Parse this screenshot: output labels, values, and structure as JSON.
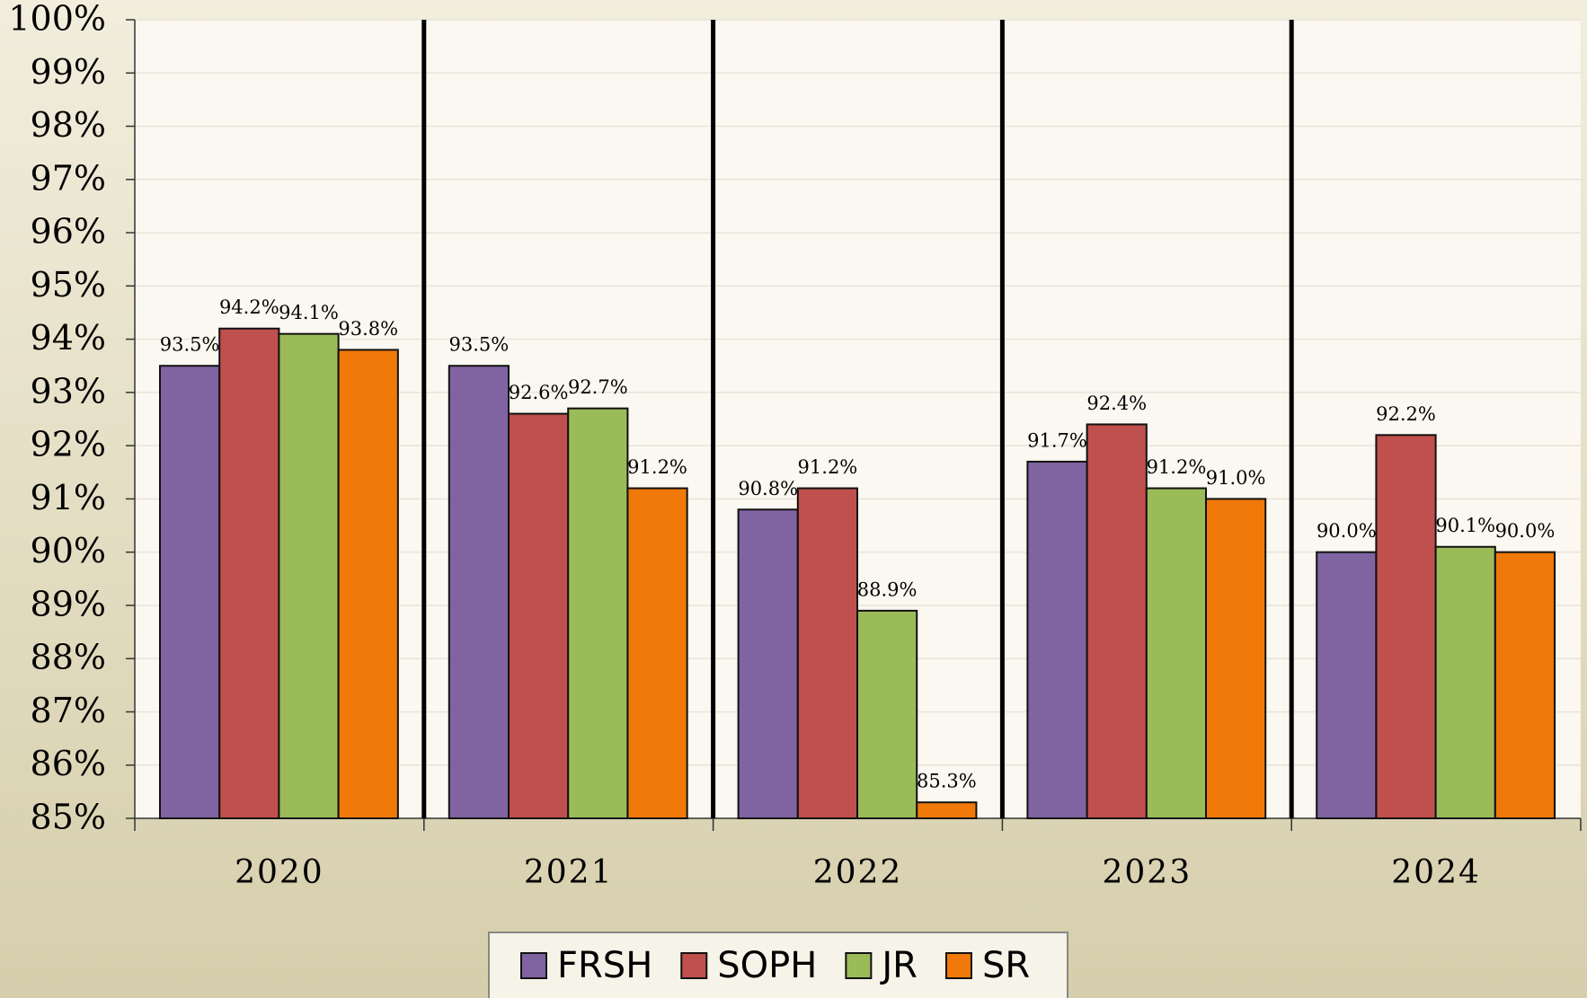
{
  "chart_data": {
    "type": "bar",
    "categories": [
      "2020",
      "2021",
      "2022",
      "2023",
      "2024"
    ],
    "series": [
      {
        "name": "FRSH",
        "color": "#8064a2",
        "values": [
          93.5,
          93.5,
          90.8,
          91.7,
          90.0
        ],
        "value_labels": [
          "93.5%",
          "93.5%",
          "90.8%",
          "91.7%",
          "90.0%"
        ]
      },
      {
        "name": "SOPH",
        "color": "#c0504d",
        "values": [
          94.2,
          92.6,
          91.2,
          92.4,
          92.2
        ],
        "value_labels": [
          "94.2%",
          "92.6%",
          "91.2%",
          "92.4%",
          "92.2%"
        ]
      },
      {
        "name": "JR",
        "color": "#9bbb59",
        "values": [
          94.1,
          92.7,
          88.9,
          91.2,
          90.1
        ],
        "value_labels": [
          "94.1%",
          "92.7%",
          "88.9%",
          "91.2%",
          "90.1%"
        ]
      },
      {
        "name": "SR",
        "color": "#f0790a",
        "values": [
          93.8,
          91.2,
          85.3,
          91.0,
          90.0
        ],
        "value_labels": [
          "93.8%",
          "91.2%",
          "85.3%",
          "91.0%",
          "90.0%"
        ]
      }
    ],
    "ylim": [
      85,
      100
    ],
    "yticks": [
      {
        "value": 85,
        "label": "85%"
      },
      {
        "value": 86,
        "label": "86%"
      },
      {
        "value": 87,
        "label": "87%"
      },
      {
        "value": 88,
        "label": "88%"
      },
      {
        "value": 89,
        "label": "89%"
      },
      {
        "value": 90,
        "label": "90%"
      },
      {
        "value": 91,
        "label": "91%"
      },
      {
        "value": 92,
        "label": "92%"
      },
      {
        "value": 93,
        "label": "93%"
      },
      {
        "value": 94,
        "label": "94%"
      },
      {
        "value": 95,
        "label": "95%"
      },
      {
        "value": 96,
        "label": "96%"
      },
      {
        "value": 97,
        "label": "97%"
      },
      {
        "value": 98,
        "label": "98%"
      },
      {
        "value": 99,
        "label": "99%"
      },
      {
        "value": 100,
        "label": "100%"
      }
    ],
    "grid": true,
    "legend": "bottom"
  }
}
